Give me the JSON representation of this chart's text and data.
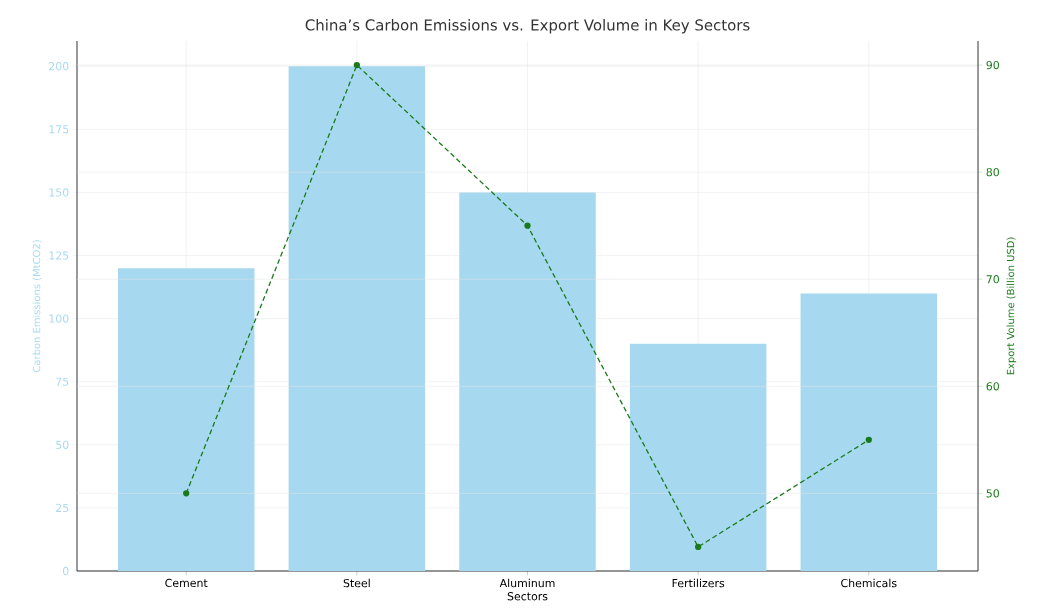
{
  "chart_data": {
    "type": "bar",
    "title": "China’s Carbon Emissions vs. Export Volume in Key Sectors",
    "xlabel": "Sectors",
    "ylabel": "Carbon Emissions (MtCO2)",
    "y2label": "Export Volume (Billion USD)",
    "categories": [
      "Cement",
      "Steel",
      "Aluminum",
      "Fertilizers",
      "Chemicals"
    ],
    "series": [
      {
        "color": "#a6d9ef",
        "values": [
          120,
          200,
          150,
          90,
          110
        ]
      },
      {
        "type": "line",
        "axis": "y2",
        "color": "#1a7a1a",
        "marker": "circle",
        "line_style": "dashed",
        "values": [
          50,
          90,
          75,
          45,
          55
        ]
      }
    ],
    "ylim": [
      0,
      210
    ],
    "yticks": [
      0,
      25,
      50,
      75,
      100,
      125,
      150,
      175,
      200
    ],
    "y2lim": [
      42.75,
      92.25
    ],
    "y2ticks": [
      50,
      60,
      70,
      80,
      90
    ],
    "grid": true
  }
}
